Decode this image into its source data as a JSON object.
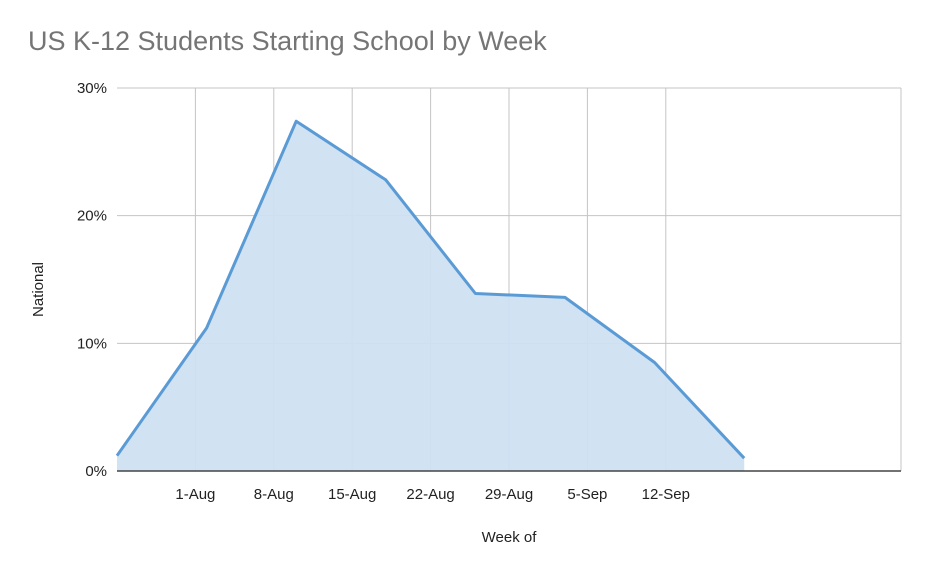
{
  "chart_data": {
    "type": "area",
    "title": "US K-12 Students Starting School by Week",
    "xlabel": "Week of",
    "ylabel": "National",
    "x_tick_labels": [
      "1-Aug",
      "8-Aug",
      "15-Aug",
      "22-Aug",
      "29-Aug",
      "5-Sep",
      "12-Sep"
    ],
    "y_tick_labels": [
      "0%",
      "10%",
      "20%",
      "30%"
    ],
    "y_ticks": [
      0,
      10,
      20,
      30
    ],
    "ylim": [
      0,
      30
    ],
    "x_unit": "days after 1-Aug (1-Aug = 0)",
    "xlim": [
      -7.0,
      63.0
    ],
    "grid": true,
    "series": [
      {
        "x": [
          -7.0,
          1.0,
          9.0,
          17.0,
          25.0,
          33.0,
          41.0,
          49.0
        ],
        "values": [
          1.2,
          11.2,
          27.4,
          22.8,
          13.9,
          13.6,
          8.5,
          1.0
        ]
      }
    ],
    "colors": {
      "line": "#5b9bd5",
      "fill": "#cfe0f2",
      "grid": "#c4c4c4",
      "axis": "#444444"
    }
  }
}
